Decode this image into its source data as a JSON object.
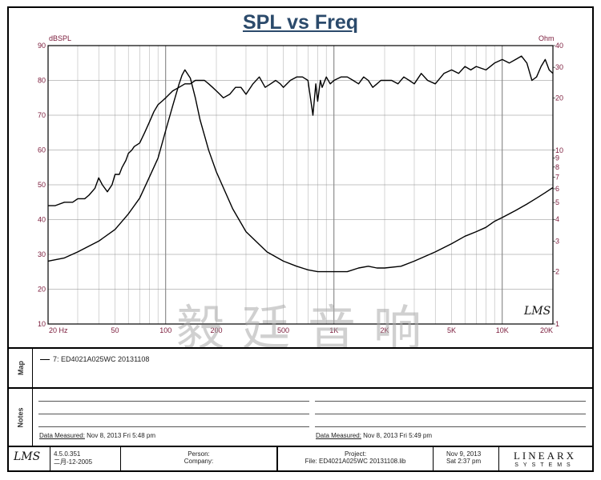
{
  "chart_data": {
    "type": "line",
    "title": "SPL vs Freq",
    "x_scale": "log",
    "xlim": [
      20,
      20000
    ],
    "x_ticks": [
      "20 Hz",
      "50",
      "100",
      "200",
      "500",
      "1K",
      "2K",
      "5K",
      "10K",
      "20K"
    ],
    "x_tick_values": [
      20,
      50,
      100,
      200,
      500,
      1000,
      2000,
      5000,
      10000,
      20000
    ],
    "y_left": {
      "unit": "dBSPL",
      "ylim": [
        10,
        90
      ],
      "ticks": [
        "10",
        "20",
        "30",
        "40",
        "50",
        "60",
        "70",
        "80",
        "90"
      ]
    },
    "y_right": {
      "unit": "Ohm",
      "scale": "log",
      "ylim": [
        1,
        40
      ],
      "ticks": [
        "1",
        "2",
        "3",
        "4",
        "5",
        "6",
        "7",
        "8",
        "9",
        "10",
        "20",
        "30",
        "40"
      ]
    },
    "grid": true,
    "series": [
      {
        "axis": "left",
        "x": [
          20,
          22,
          25,
          28,
          30,
          33,
          35,
          38,
          40,
          42,
          45,
          48,
          50,
          53,
          55,
          58,
          60,
          63,
          65,
          70,
          75,
          80,
          85,
          90,
          95,
          100,
          105,
          110,
          120,
          130,
          140,
          150,
          160,
          170,
          180,
          190,
          200,
          210,
          220,
          240,
          260,
          280,
          300,
          330,
          360,
          390,
          420,
          450,
          480,
          500,
          550,
          600,
          650,
          700,
          750,
          780,
          800,
          830,
          850,
          900,
          950,
          1000,
          1100,
          1200,
          1300,
          1400,
          1500,
          1600,
          1700,
          1800,
          1900,
          2000,
          2200,
          2400,
          2600,
          2800,
          3000,
          3300,
          3600,
          4000,
          4500,
          5000,
          5500,
          6000,
          6500,
          7000,
          8000,
          9000,
          10000,
          11000,
          12000,
          13000,
          14000,
          15000,
          16000,
          17000,
          18000,
          19000,
          20000
        ],
        "y": [
          44,
          44,
          45,
          45,
          46,
          46,
          47,
          49,
          52,
          50,
          48,
          50,
          53,
          53,
          55,
          57,
          59,
          60,
          61,
          62,
          65,
          68,
          71,
          73,
          74,
          75,
          76,
          77,
          78,
          79,
          79,
          80,
          80,
          80,
          79,
          78,
          77,
          76,
          75,
          76,
          78,
          78,
          76,
          79,
          81,
          78,
          79,
          80,
          79,
          78,
          80,
          81,
          81,
          80,
          70,
          79,
          74,
          80,
          78,
          81,
          79,
          80,
          81,
          81,
          80,
          79,
          81,
          80,
          78,
          79,
          80,
          80,
          80,
          79,
          81,
          80,
          79,
          82,
          80,
          79,
          82,
          83,
          82,
          84,
          83,
          84,
          83,
          85,
          86,
          85,
          86,
          87,
          85,
          80,
          81,
          84,
          86,
          83,
          82
        ]
      },
      {
        "axis": "right",
        "x": [
          20,
          25,
          30,
          40,
          50,
          60,
          70,
          80,
          90,
          100,
          110,
          120,
          125,
          130,
          140,
          150,
          160,
          180,
          200,
          250,
          300,
          400,
          500,
          600,
          700,
          800,
          900,
          1000,
          1200,
          1400,
          1600,
          1800,
          2000,
          2500,
          3000,
          4000,
          5000,
          6000,
          7000,
          8000,
          9000,
          10000,
          12000,
          14000,
          16000,
          18000,
          20000
        ],
        "y": [
          2.3,
          2.4,
          2.6,
          3.0,
          3.5,
          4.3,
          5.3,
          7.0,
          9.0,
          13.0,
          18.0,
          24.0,
          27.0,
          29.0,
          26.0,
          20.0,
          15.0,
          10.0,
          7.5,
          4.6,
          3.4,
          2.6,
          2.3,
          2.15,
          2.05,
          2.0,
          2.0,
          2.0,
          2.0,
          2.1,
          2.15,
          2.1,
          2.1,
          2.15,
          2.3,
          2.6,
          2.9,
          3.2,
          3.4,
          3.6,
          3.9,
          4.1,
          4.5,
          4.9,
          5.3,
          5.7,
          6.1
        ]
      }
    ]
  },
  "map": {
    "label": "Map",
    "legend_label": "7: ED4021A025WC   20131108"
  },
  "notes": {
    "label": "Notes",
    "left_measured_label": "Data Measured:",
    "left_measured_value": "Nov  8, 2013  Fri  5:48 pm",
    "right_measured_label": "Data Measured:",
    "right_measured_value": "Nov  8, 2013  Fri  5:49 pm"
  },
  "footer": {
    "version": "4.5.0.351",
    "build_date": "二月-12-2005",
    "person_label": "Person:",
    "company_label": "Company:",
    "project_label": "Project:",
    "file_label": "File: ED4021A025WC  20131108.lib",
    "date": "Nov  9, 2013",
    "time": "Sat  2:37 pm",
    "logo_big": "LINEARX",
    "logo_small": "SYSTEMS"
  },
  "watermark": "毅廷音响",
  "signature": "LMS"
}
